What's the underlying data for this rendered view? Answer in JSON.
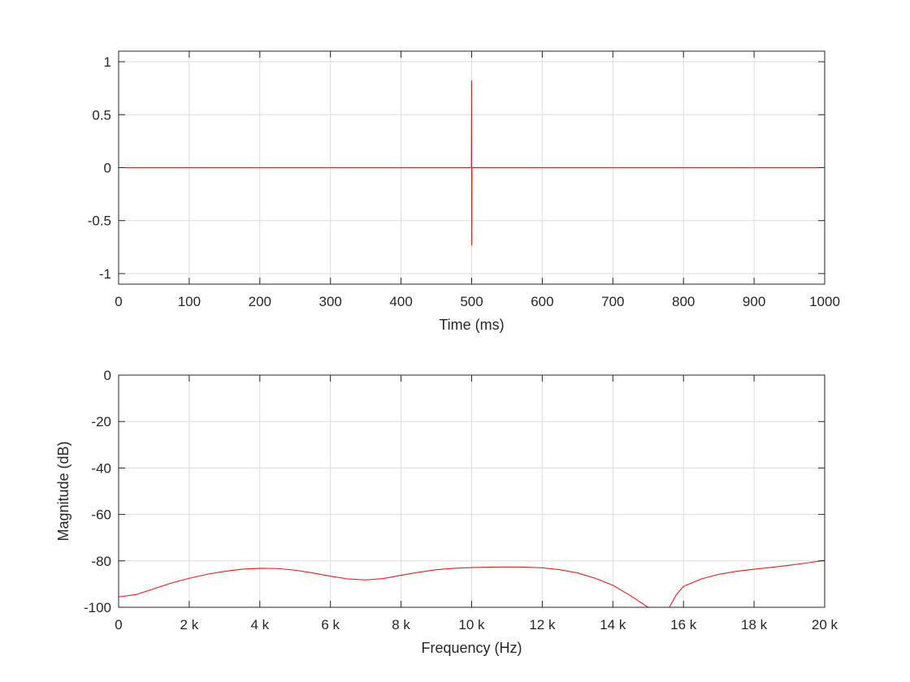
{
  "chart_data": [
    {
      "type": "line",
      "title": "",
      "xlabel": "Time (ms)",
      "ylabel": "",
      "xlim": [
        0,
        1000
      ],
      "ylim": [
        -1.1,
        1.1
      ],
      "grid": true,
      "xticks": [
        0,
        100,
        200,
        300,
        400,
        500,
        600,
        700,
        800,
        900,
        1000
      ],
      "xtick_labels": [
        "0",
        "100",
        "200",
        "300",
        "400",
        "500",
        "600",
        "700",
        "800",
        "900",
        "1000"
      ],
      "yticks": [
        1,
        0.5,
        0,
        -0.5,
        -1
      ],
      "ytick_labels": [
        "1",
        "0.5",
        "0",
        "-0.5",
        "-1"
      ],
      "series": [
        {
          "color": "#e41a1c",
          "x": [
            0,
            499.6,
            499.9,
            500.0,
            500.1,
            500.4,
            1000
          ],
          "y": [
            0,
            0,
            0.82,
            0,
            -0.73,
            0,
            0
          ]
        }
      ]
    },
    {
      "type": "line",
      "title": "",
      "xlabel": "Frequency (Hz)",
      "ylabel": "Magnitude (dB)",
      "xlim": [
        0,
        20000
      ],
      "ylim": [
        -100,
        0
      ],
      "grid": true,
      "xticks": [
        0,
        2000,
        4000,
        6000,
        8000,
        10000,
        12000,
        14000,
        16000,
        18000,
        20000
      ],
      "xtick_labels": [
        "0",
        "2 k",
        "4 k",
        "6 k",
        "8 k",
        "10 k",
        "12 k",
        "14 k",
        "16 k",
        "18 k",
        "20 k"
      ],
      "yticks": [
        0,
        -20,
        -40,
        -60,
        -80,
        -100
      ],
      "ytick_labels": [
        "0",
        "-20",
        "-40",
        "-60",
        "-80",
        "-100"
      ],
      "series": [
        {
          "color": "#e41a1c",
          "x": [
            0,
            500,
            1000,
            1500,
            2000,
            2500,
            3000,
            3500,
            4000,
            4500,
            5000,
            5500,
            6000,
            6500,
            7000,
            7500,
            8000,
            8500,
            9000,
            9500,
            10000,
            10500,
            11000,
            11500,
            12000,
            12500,
            13000,
            13500,
            14000,
            14500,
            14800,
            15000
          ],
          "y": [
            -95.5,
            -94.5,
            -92,
            -89.5,
            -87.5,
            -85.8,
            -84.5,
            -83.6,
            -83.2,
            -83.3,
            -84.0,
            -85.2,
            -86.6,
            -87.8,
            -88.2,
            -87.6,
            -86.2,
            -84.9,
            -83.8,
            -83.2,
            -82.9,
            -82.7,
            -82.6,
            -82.7,
            -83.0,
            -83.8,
            -85.2,
            -87.5,
            -90.5,
            -95.0,
            -98.0,
            -100
          ]
        },
        {
          "color": "#e41a1c",
          "x": [
            15600,
            15800,
            16000,
            16500,
            17000,
            17500,
            18000,
            18500,
            19000,
            19500,
            20000
          ],
          "y": [
            -100,
            -94.5,
            -91.0,
            -87.8,
            -85.8,
            -84.5,
            -83.6,
            -82.8,
            -81.9,
            -80.9,
            -79.8
          ]
        }
      ]
    }
  ]
}
